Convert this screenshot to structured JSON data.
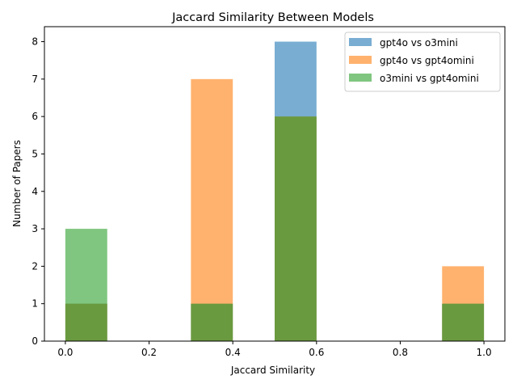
{
  "chart_data": {
    "type": "bar",
    "title": "Jaccard Similarity Between Models",
    "xlabel": "Jaccard Similarity",
    "ylabel": "Number of Papers",
    "xlim": [
      -0.05,
      1.05
    ],
    "ylim": [
      0,
      8.4
    ],
    "xticks": [
      "0.0",
      "0.2",
      "0.4",
      "0.6",
      "0.8",
      "1.0"
    ],
    "yticks": [
      "0",
      "1",
      "2",
      "3",
      "4",
      "5",
      "6",
      "7",
      "8"
    ],
    "bin_edges": [
      0.0,
      0.1,
      0.2,
      0.3,
      0.4,
      0.5,
      0.6,
      0.7,
      0.8,
      0.9,
      1.0
    ],
    "series": [
      {
        "name": "gpt4o vs o3mini",
        "color": "#1f77b4",
        "alpha": 0.6,
        "counts": [
          1,
          0,
          0,
          1,
          0,
          8,
          0,
          0,
          0,
          1
        ]
      },
      {
        "name": "gpt4o vs gpt4omini",
        "color": "#ff7f0e",
        "alpha": 0.6,
        "counts": [
          1,
          0,
          0,
          7,
          0,
          6,
          0,
          0,
          0,
          2
        ]
      },
      {
        "name": "o3mini vs gpt4omini",
        "color": "#2ca02c",
        "alpha": 0.6,
        "counts": [
          3,
          0,
          0,
          1,
          0,
          6,
          0,
          0,
          0,
          1
        ]
      }
    ],
    "grid": false,
    "legend_position": "top-right"
  }
}
